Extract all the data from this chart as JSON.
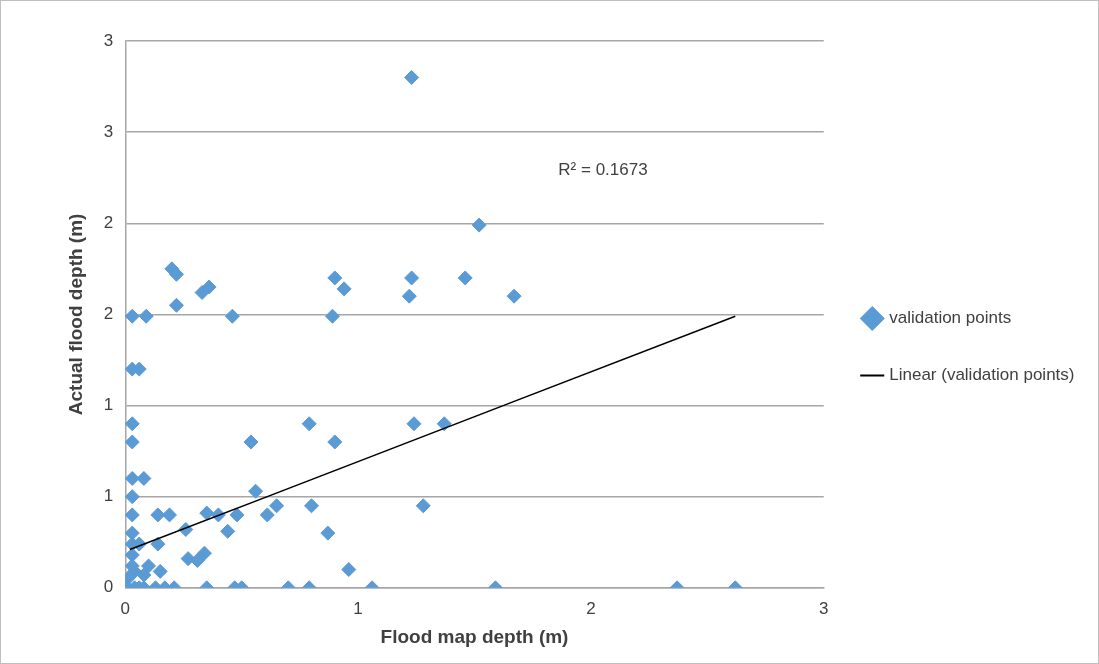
{
  "chart_data": {
    "type": "scatter",
    "xlabel": "Flood map depth (m)",
    "ylabel": "Actual flood depth (m)",
    "xlim": [
      0,
      3
    ],
    "ylim": [
      0,
      3
    ],
    "xticks": [
      0,
      1,
      2,
      3
    ],
    "yticks": [
      0,
      {
        "value": 0.5,
        "label": "1"
      },
      1,
      {
        "value": 1.5,
        "label": "2"
      },
      2,
      {
        "value": 2.5,
        "label": "3"
      },
      3
    ],
    "grid": "y",
    "legend": "right",
    "marker": "diamond",
    "annotations": [
      "R² = 0.1673"
    ],
    "series": [
      {
        "name": "validation points",
        "type": "scatter",
        "color": "#5b9bd5",
        "x": [
          1.23,
          1.52,
          0.9,
          0.94,
          1.23,
          1.22,
          1.46,
          1.67,
          0.2,
          0.22,
          0.22,
          0.33,
          0.36,
          0.89,
          0.03,
          0.09,
          0.46,
          0.03,
          0.06,
          0.03,
          0.03,
          0.54,
          0.79,
          0.9,
          1.24,
          1.37,
          0.03,
          0.08,
          0.56,
          0.61,
          0.65,
          0.03,
          0.03,
          0.14,
          0.19,
          0.35,
          0.48,
          0.4,
          0.44,
          0.8,
          0.87,
          1.28,
          0.26,
          0.31,
          0.34,
          0.27,
          0.96,
          0.06,
          0.14,
          0.03,
          0.03,
          0.03,
          0.03,
          0.04,
          0.08,
          0.1,
          0.15,
          0.01,
          0.01,
          0.04,
          0.06,
          0.08,
          0.13,
          0.17,
          0.21,
          0.35,
          0.47,
          0.5,
          0.7,
          0.79,
          1.06,
          1.59,
          2.37,
          2.62
        ],
        "values": [
          2.8,
          1.99,
          1.7,
          1.64,
          1.7,
          1.6,
          1.7,
          1.6,
          1.75,
          1.72,
          1.55,
          1.62,
          1.65,
          1.49,
          1.49,
          1.49,
          1.49,
          1.2,
          1.2,
          0.9,
          0.8,
          0.8,
          0.9,
          0.8,
          0.9,
          0.9,
          0.6,
          0.6,
          0.53,
          0.4,
          0.45,
          0.5,
          0.4,
          0.4,
          0.4,
          0.41,
          0.4,
          0.4,
          0.31,
          0.45,
          0.3,
          0.45,
          0.32,
          0.15,
          0.19,
          0.16,
          0.1,
          0.24,
          0.24,
          0.24,
          0.3,
          0.18,
          0.12,
          0.09,
          0.07,
          0.12,
          0.09,
          0.05,
          0,
          0,
          0,
          0,
          0,
          0,
          0,
          0,
          0,
          0,
          0,
          0,
          0,
          0,
          0,
          0
        ]
      },
      {
        "name": "Linear (validation points)",
        "type": "line",
        "color": "#000000",
        "marker": "none",
        "x": [
          0.02,
          2.62
        ],
        "values": [
          0.21,
          1.49
        ]
      }
    ]
  }
}
